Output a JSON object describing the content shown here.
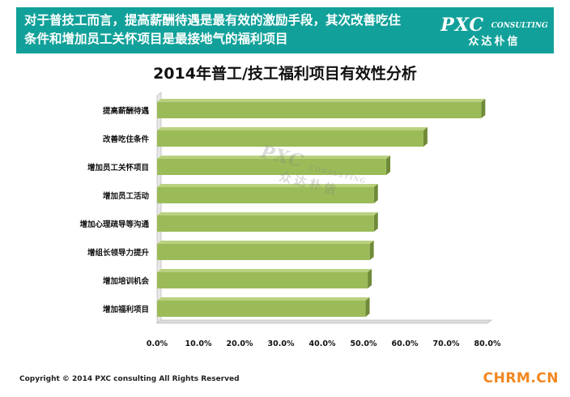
{
  "banner": {
    "line1": "对于普技工而言，提高薪酬待遇是最有效的激励手段，其次改善吃住",
    "line2": "条件和增加员工关怀项目是最接地气的福利项目",
    "logo_main": "PXC",
    "logo_sub": "CONSULTING",
    "logo_cn": "众达朴信"
  },
  "chart_data": {
    "type": "bar",
    "orientation": "horizontal",
    "title": "2014年普工/技工福利项目有效性分析",
    "categories": [
      "提高薪酬待遇",
      "改善吃住条件",
      "增加员工关怀项目",
      "增加员工活动",
      "增加心理疏导等沟通",
      "增组长领导力提升",
      "增加培训机会",
      "增加福利项目"
    ],
    "values": [
      78.5,
      64.5,
      55.5,
      52.5,
      52.5,
      51.5,
      51.0,
      50.5
    ],
    "xlim": [
      0,
      80
    ],
    "xticks": [
      "0.0%",
      "10.0%",
      "20.0%",
      "30.0%",
      "40.0%",
      "50.0%",
      "60.0%",
      "70.0%",
      "80.0%"
    ],
    "bar_color": "#9bbb59",
    "grid": false,
    "legend": "none"
  },
  "watermark": {
    "main": "PXC",
    "sub": "CONSULTING",
    "cn": "众达朴信"
  },
  "footer": {
    "copyright": "Copyright © 2014  PXC consulting All Rights Reserved",
    "site": "CHRM.CN"
  }
}
